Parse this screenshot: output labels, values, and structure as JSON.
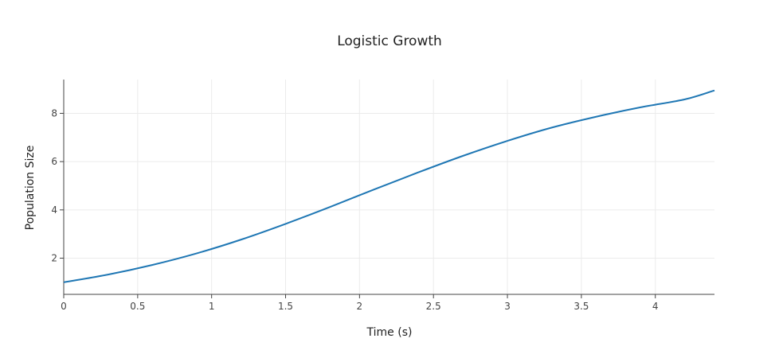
{
  "chart_data": {
    "type": "line",
    "title": "Logistic Growth",
    "xlabel": "Time (s)",
    "ylabel": "Population Size",
    "xlim": [
      0,
      4.4
    ],
    "ylim": [
      0.5,
      9.4
    ],
    "xticks": [
      0,
      0.5,
      1,
      1.5,
      2,
      2.5,
      3,
      3.5,
      4
    ],
    "xtick_labels": [
      "0",
      "0.5",
      "1",
      "1.5",
      "2",
      "2.5",
      "3",
      "3.5",
      "4"
    ],
    "yticks": [
      2,
      4,
      6,
      8
    ],
    "ytick_labels": [
      "2",
      "4",
      "6",
      "8"
    ],
    "grid": true,
    "legend": "none",
    "series": [
      {
        "color": "#1f77b4",
        "x": [
          0,
          0.3,
          0.6,
          0.9,
          1.2,
          1.5,
          1.8,
          2.1,
          2.4,
          2.7,
          3.0,
          3.3,
          3.6,
          3.9,
          4.2,
          4.4
        ],
        "y": [
          1.0,
          1.32,
          1.72,
          2.2,
          2.77,
          3.42,
          4.12,
          4.85,
          5.56,
          6.24,
          6.86,
          7.41,
          7.86,
          8.25,
          8.58,
          8.95
        ]
      }
    ]
  }
}
